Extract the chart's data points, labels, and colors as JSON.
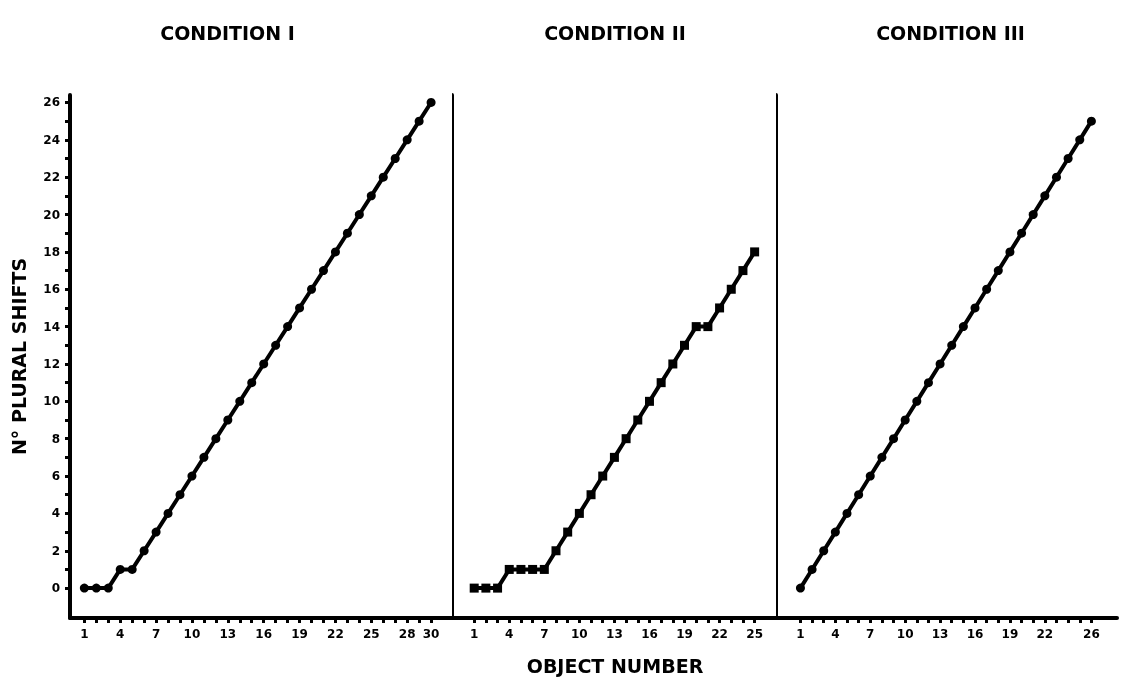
{
  "chart_data": [
    {
      "type": "line",
      "title": "CONDITION I",
      "ylabel": "N° PLURAL SHIFTS",
      "marker": "circle",
      "line_style": "solid",
      "x": [
        1,
        2,
        3,
        4,
        5,
        6,
        7,
        8,
        9,
        10,
        11,
        12,
        13,
        14,
        15,
        16,
        17,
        18,
        19,
        20,
        21,
        22,
        23,
        24,
        25,
        26,
        27,
        28,
        29,
        30
      ],
      "series": [
        {
          "color": "#000000",
          "values": [
            0,
            0,
            0,
            1,
            1,
            2,
            3,
            4,
            5,
            6,
            7,
            8,
            9,
            10,
            11,
            12,
            13,
            14,
            15,
            16,
            17,
            18,
            19,
            20,
            21,
            22,
            23,
            24,
            25,
            26
          ]
        }
      ],
      "xlim": [
        -0.2,
        32
      ],
      "xticks": [
        1,
        {
          "value": 2,
          "label": null
        },
        {
          "value": 3,
          "label": null
        },
        4,
        {
          "value": 5,
          "label": null
        },
        {
          "value": 6,
          "label": null
        },
        7,
        {
          "value": 8,
          "label": null
        },
        {
          "value": 9,
          "label": null
        },
        10,
        {
          "value": 11,
          "label": null
        },
        {
          "value": 12,
          "label": null
        },
        13,
        {
          "value": 14,
          "label": null
        },
        {
          "value": 15,
          "label": null
        },
        16,
        {
          "value": 17,
          "label": null
        },
        {
          "value": 18,
          "label": null
        },
        19,
        {
          "value": 20,
          "label": null
        },
        {
          "value": 21,
          "label": null
        },
        22,
        {
          "value": 23,
          "label": null
        },
        {
          "value": 24,
          "label": null
        },
        25,
        {
          "value": 26,
          "label": null
        },
        {
          "value": 27,
          "label": null
        },
        28,
        {
          "value": 29,
          "label": null
        },
        30
      ],
      "ylim": [
        -1.6,
        26.4
      ],
      "yticks": [
        0,
        {
          "value": 1,
          "label": null
        },
        2,
        {
          "value": 3,
          "label": null
        },
        4,
        {
          "value": 5,
          "label": null
        },
        6,
        {
          "value": 7,
          "label": null
        },
        8,
        {
          "value": 9,
          "label": null
        },
        10,
        {
          "value": 11,
          "label": null
        },
        12,
        {
          "value": 13,
          "label": null
        },
        14,
        {
          "value": 15,
          "label": null
        },
        16,
        {
          "value": 17,
          "label": null
        },
        18,
        {
          "value": 19,
          "label": null
        },
        20,
        {
          "value": 21,
          "label": null
        },
        22,
        {
          "value": 23,
          "label": null
        },
        24,
        {
          "value": 25,
          "label": null
        },
        26
      ]
    },
    {
      "type": "line",
      "title": "CONDITION II",
      "xlabel": "OBJECT NUMBER",
      "marker": "square",
      "line_style": "solid",
      "tick_labels": "x",
      "x": [
        1,
        2,
        3,
        4,
        5,
        6,
        7,
        8,
        9,
        10,
        11,
        12,
        13,
        14,
        15,
        16,
        17,
        18,
        19,
        20,
        21,
        22,
        23,
        24,
        25
      ],
      "series": [
        {
          "color": "#000000",
          "values": [
            0,
            0,
            0,
            1,
            1,
            1,
            1,
            2,
            3,
            4,
            5,
            6,
            7,
            8,
            9,
            10,
            11,
            12,
            13,
            14,
            14,
            15,
            16,
            17,
            18
          ]
        }
      ],
      "xlim": [
        -0.9,
        27
      ],
      "xticks": [
        1,
        {
          "value": 2,
          "label": null
        },
        {
          "value": 3,
          "label": null
        },
        4,
        {
          "value": 5,
          "label": null
        },
        {
          "value": 6,
          "label": null
        },
        7,
        {
          "value": 8,
          "label": null
        },
        {
          "value": 9,
          "label": null
        },
        10,
        {
          "value": 11,
          "label": null
        },
        {
          "value": 12,
          "label": null
        },
        13,
        {
          "value": 14,
          "label": null
        },
        {
          "value": 15,
          "label": null
        },
        16,
        {
          "value": 17,
          "label": null
        },
        {
          "value": 18,
          "label": null
        },
        19,
        {
          "value": 20,
          "label": null
        },
        {
          "value": 21,
          "label": null
        },
        22,
        {
          "value": 23,
          "label": null
        },
        {
          "value": 24,
          "label": null
        },
        25
      ],
      "ylim": [
        -1.6,
        26.4
      ]
    },
    {
      "type": "line",
      "title": "CONDITION III",
      "marker": "circle",
      "line_style": "solid",
      "tick_labels": "x",
      "x": [
        1,
        2,
        3,
        4,
        5,
        6,
        7,
        8,
        9,
        10,
        11,
        12,
        13,
        14,
        15,
        16,
        17,
        18,
        19,
        20,
        21,
        22,
        23,
        24,
        25,
        26
      ],
      "series": [
        {
          "color": "#000000",
          "values": [
            0,
            1,
            2,
            3,
            4,
            5,
            6,
            7,
            8,
            9,
            10,
            11,
            12,
            13,
            14,
            15,
            16,
            17,
            18,
            19,
            20,
            21,
            22,
            23,
            24,
            25
          ]
        }
      ],
      "xlim": [
        -1.1,
        28.2
      ],
      "xticks": [
        1,
        {
          "value": 2,
          "label": null
        },
        {
          "value": 3,
          "label": null
        },
        4,
        {
          "value": 5,
          "label": null
        },
        {
          "value": 6,
          "label": null
        },
        7,
        {
          "value": 8,
          "label": null
        },
        {
          "value": 9,
          "label": null
        },
        10,
        {
          "value": 11,
          "label": null
        },
        {
          "value": 12,
          "label": null
        },
        13,
        {
          "value": 14,
          "label": null
        },
        {
          "value": 15,
          "label": null
        },
        16,
        {
          "value": 17,
          "label": null
        },
        {
          "value": 18,
          "label": null
        },
        19,
        {
          "value": 20,
          "label": null
        },
        {
          "value": 21,
          "label": null
        },
        22,
        {
          "value": 23,
          "label": null
        },
        {
          "value": 24,
          "label": null
        },
        {
          "value": 25,
          "label": null
        },
        26
      ],
      "ylim": [
        -1.6,
        26.4
      ]
    }
  ]
}
